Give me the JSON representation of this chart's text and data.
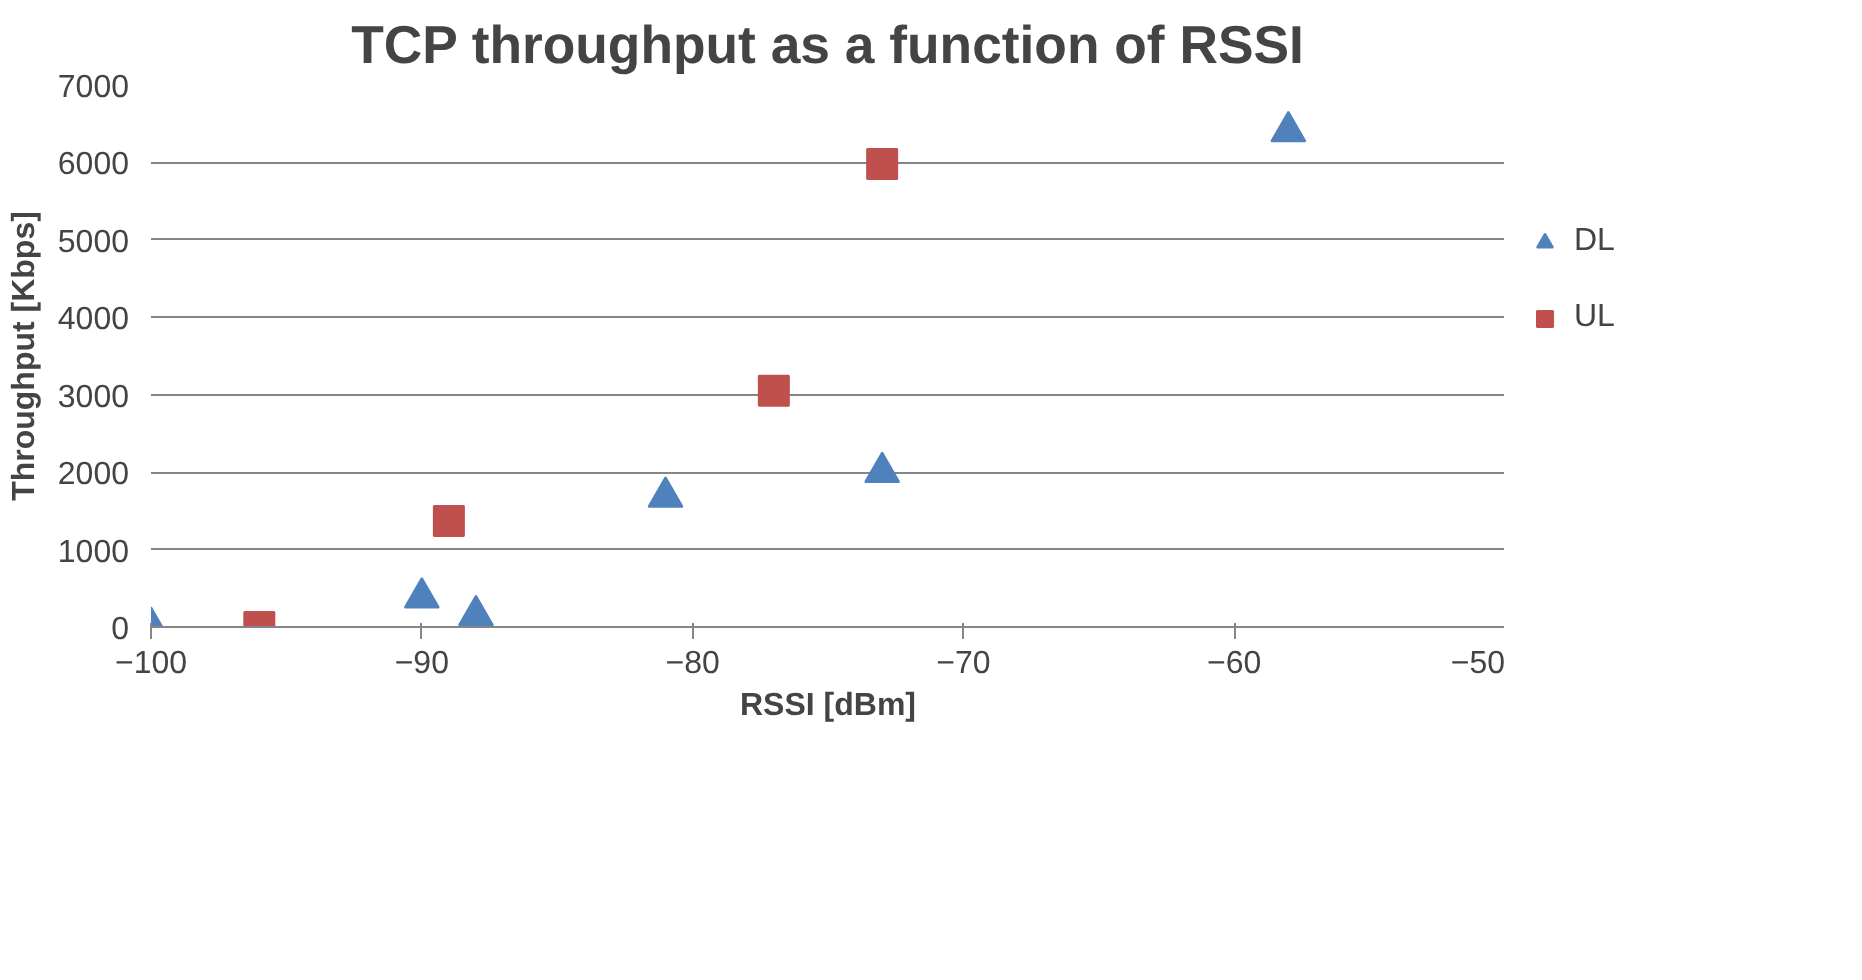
{
  "chart_data": {
    "type": "scatter",
    "title": "TCP throughput as a function of RSSI",
    "xlabel": "RSSI [dBm]",
    "ylabel": "Throughput [Kbps]",
    "xlim": [
      -100,
      -50
    ],
    "xticks": [
      -100,
      -90,
      -80,
      -70,
      -60,
      -50
    ],
    "ylim": [
      0,
      7000
    ],
    "yticks": [
      0,
      1000,
      2000,
      3000,
      4000,
      5000,
      6000,
      7000
    ],
    "grid": "y",
    "legend": "right",
    "series": [
      {
        "name": "DL",
        "color": "#4f81bd",
        "marker": "triangle",
        "x": [
          -100,
          -90,
          -88,
          -81,
          -73,
          -58
        ],
        "values": [
          0,
          380,
          150,
          1680,
          2000,
          6400
        ]
      },
      {
        "name": "UL",
        "color": "#c0504d",
        "marker": "square",
        "x": [
          -96,
          -89,
          -77,
          -73
        ],
        "values": [
          0,
          1370,
          3050,
          5980
        ]
      }
    ]
  }
}
